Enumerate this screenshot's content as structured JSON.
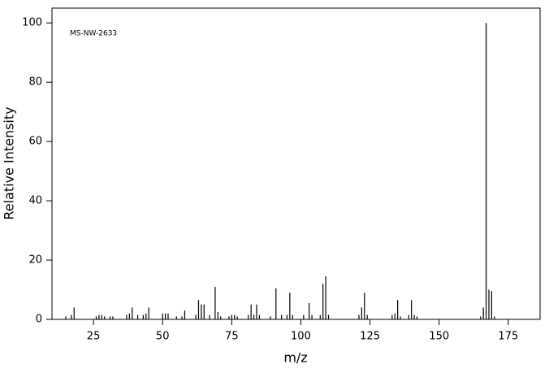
{
  "chart_data": {
    "type": "stick",
    "annotation": "MS-NW-2633",
    "xlabel": "m/z",
    "ylabel": "Relative Intensity",
    "color": "#000000",
    "x": [
      15,
      17,
      18,
      26,
      27,
      28,
      29,
      31,
      32,
      37,
      38,
      39,
      41,
      43,
      44,
      45,
      50,
      51,
      52,
      55,
      57,
      58,
      62,
      63,
      64,
      65,
      67,
      69,
      70,
      71,
      74,
      75,
      76,
      77,
      81,
      82,
      83,
      84,
      85,
      89,
      91,
      93,
      95,
      96,
      97,
      101,
      103,
      104,
      107,
      108,
      109,
      110,
      121,
      122,
      123,
      124,
      133,
      134,
      135,
      136,
      139,
      140,
      141,
      142,
      165,
      166,
      167,
      168,
      169,
      170
    ],
    "values": [
      1,
      1.5,
      4,
      1,
      1.5,
      1.5,
      1,
      1,
      1,
      1.5,
      2,
      4,
      1.5,
      1.5,
      2,
      4,
      2,
      2,
      2,
      1,
      1,
      3,
      1.5,
      6.5,
      5,
      5,
      1.5,
      11,
      2.5,
      1,
      1,
      1.5,
      1.5,
      1,
      1.5,
      5,
      1.5,
      5,
      1.5,
      1,
      10.5,
      1.5,
      1.5,
      9,
      1.5,
      1.5,
      5.5,
      1.5,
      1.5,
      12,
      14.5,
      1.5,
      1.5,
      4,
      9,
      1.5,
      1.5,
      2,
      6.5,
      1,
      1.5,
      6.5,
      1.5,
      1,
      1,
      4,
      100,
      10,
      9.5,
      1
    ],
    "xlim": [
      10,
      186.5
    ],
    "ylim": [
      0,
      105
    ],
    "xticks": [
      25,
      50,
      75,
      100,
      125,
      150,
      175
    ],
    "yticks": [
      0,
      20,
      40,
      60,
      80,
      100
    ]
  }
}
